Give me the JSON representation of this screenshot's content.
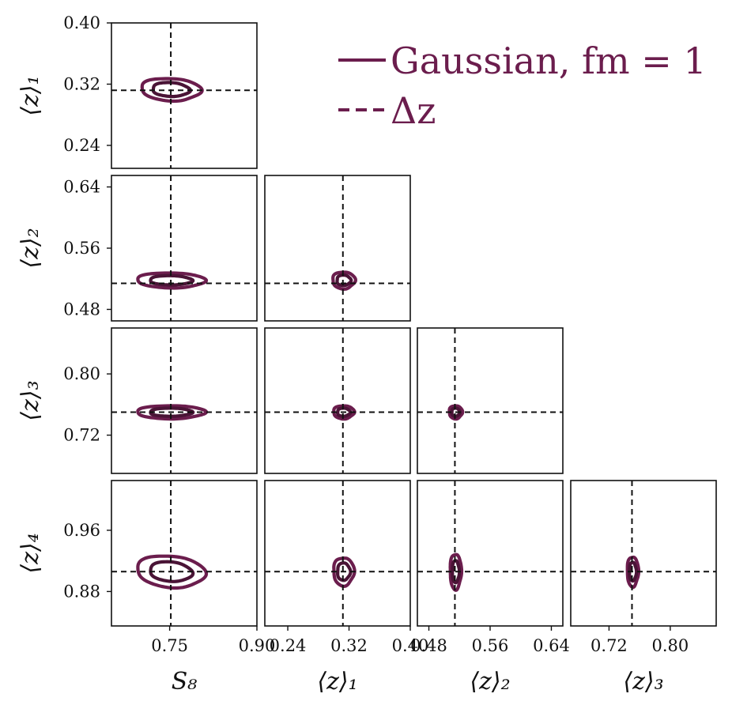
{
  "chart_data": {
    "type": "corner",
    "parameters": [
      "S8",
      "z1",
      "z2",
      "z3",
      "z4"
    ],
    "axis_labels": {
      "S8": "S₈",
      "z1": "⟨z⟩₁",
      "z2": "⟨z⟩₂",
      "z3": "⟨z⟩₃",
      "z4": "⟨z⟩₄"
    },
    "ranges": {
      "S8": [
        0.65,
        0.9
      ],
      "z1": [
        0.21,
        0.4
      ],
      "z2": [
        0.465,
        0.655
      ],
      "z3": [
        0.67,
        0.86
      ],
      "z4": [
        0.835,
        1.025
      ]
    },
    "x_ticks": {
      "S8": [
        "0.75",
        "0.90"
      ],
      "z1": [
        "0.24",
        "0.32",
        "0.40"
      ],
      "z2": [
        "0.48",
        "0.56",
        "0.64"
      ],
      "z3": [
        "0.72",
        "0.80"
      ]
    },
    "y_ticks": {
      "z1": [
        "0.40",
        "0.32",
        "0.24"
      ],
      "z2": [
        "0.64",
        "0.56",
        "0.48"
      ],
      "z3": [
        "0.80",
        "0.72"
      ],
      "z4": [
        "0.96",
        "0.88"
      ]
    },
    "fiducial": {
      "S8": 0.752,
      "z1": 0.312,
      "z2": 0.514,
      "z3": 0.75,
      "z4": 0.906
    },
    "series": [
      {
        "name": "Gaussian, fm = 1",
        "style": "solid",
        "color": "#6b1d4d",
        "inner_color": "#4a1436"
      },
      {
        "name": "Δz",
        "style": "dashed",
        "color": "#111111"
      }
    ],
    "contours": [
      {
        "x": "S8",
        "y": "z1",
        "center": [
          0.752,
          0.313
        ],
        "sigma": [
          0.021,
          0.006
        ],
        "rho": -0.1,
        "jitter": 0.06
      },
      {
        "x": "S8",
        "y": "z2",
        "center": [
          0.752,
          0.518
        ],
        "sigma": [
          0.024,
          0.004
        ],
        "rho": -0.05,
        "jitter": 0.05
      },
      {
        "x": "z1",
        "y": "z2",
        "center": [
          0.313,
          0.518
        ],
        "sigma": [
          0.006,
          0.0045
        ],
        "rho": 0.0,
        "jitter": 0.08
      },
      {
        "x": "S8",
        "y": "z3",
        "center": [
          0.752,
          0.75
        ],
        "sigma": [
          0.024,
          0.0035
        ],
        "rho": 0.0,
        "jitter": 0.05
      },
      {
        "x": "z1",
        "y": "z3",
        "center": [
          0.313,
          0.75
        ],
        "sigma": [
          0.0055,
          0.0035
        ],
        "rho": 0.0,
        "jitter": 0.08
      },
      {
        "x": "z2",
        "y": "z3",
        "center": [
          0.515,
          0.75
        ],
        "sigma": [
          0.0035,
          0.0035
        ],
        "rho": 0.0,
        "jitter": 0.08
      },
      {
        "x": "S8",
        "y": "z4",
        "center": [
          0.752,
          0.906
        ],
        "sigma": [
          0.024,
          0.0085
        ],
        "rho": -0.15,
        "jitter": 0.05
      },
      {
        "x": "z1",
        "y": "z4",
        "center": [
          0.313,
          0.906
        ],
        "sigma": [
          0.0055,
          0.0075
        ],
        "rho": 0.0,
        "jitter": 0.08
      },
      {
        "x": "z2",
        "y": "z4",
        "center": [
          0.515,
          0.906
        ],
        "sigma": [
          0.003,
          0.0095
        ],
        "rho": 0.0,
        "jitter": 0.08
      },
      {
        "x": "z3",
        "y": "z4",
        "center": [
          0.751,
          0.906
        ],
        "sigma": [
          0.003,
          0.008
        ],
        "rho": 0.0,
        "jitter": 0.08
      }
    ],
    "legend_location": "top-right",
    "grid": false
  }
}
